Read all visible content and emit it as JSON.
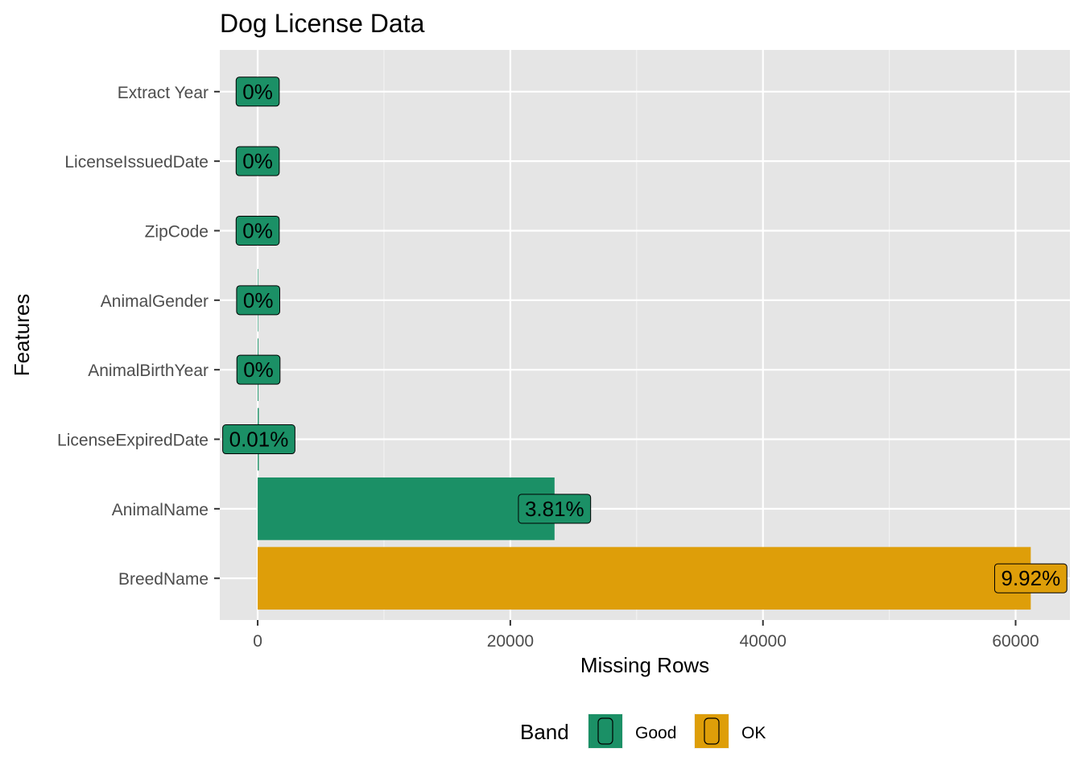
{
  "chart_data": {
    "type": "bar",
    "orientation": "horizontal",
    "title": "Dog License Data",
    "xlabel": "Missing Rows",
    "ylabel": "Features",
    "xlim": [
      -3000,
      64300
    ],
    "x_ticks": [
      0,
      20000,
      40000,
      60000
    ],
    "x_tick_labels": [
      "0",
      "20000",
      "40000",
      "60000"
    ],
    "grid": true,
    "categories": [
      "Extract Year",
      "LicenseIssuedDate",
      "ZipCode",
      "AnimalGender",
      "AnimalBirthYear",
      "LicenseExpiredDate",
      "AnimalName",
      "BreedName"
    ],
    "values": [
      0,
      0,
      0,
      40,
      60,
      90,
      23500,
      61200
    ],
    "labels": [
      "0%",
      "0%",
      "0%",
      "0%",
      "0%",
      "0.01%",
      "3.81%",
      "9.92%"
    ],
    "bands": [
      "Good",
      "Good",
      "Good",
      "Good",
      "Good",
      "Good",
      "Good",
      "OK"
    ],
    "legend": {
      "title": "Band",
      "position": "bottom",
      "items": [
        {
          "label": "Good",
          "color": "#1b9066"
        },
        {
          "label": "OK",
          "color": "#de9e09"
        }
      ]
    },
    "colors": {
      "Good": "#1b9066",
      "OK": "#de9e09"
    }
  }
}
